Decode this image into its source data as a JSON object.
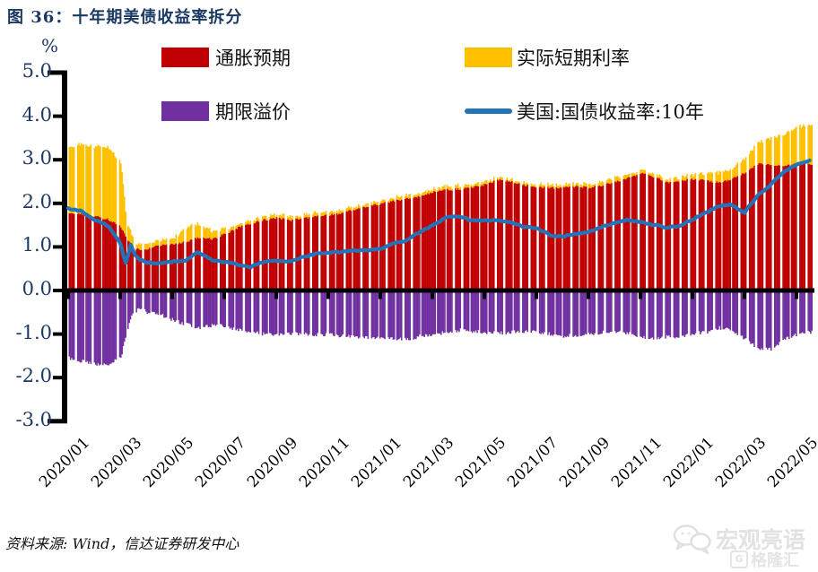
{
  "page": {
    "title": "图  36：十年期美债收益率拆分",
    "unit_label": "%",
    "source_note": "资料来源: Wind，信达证券研发中心"
  },
  "watermark": {
    "brand": "宏观亮语",
    "logo_letter": "G",
    "logo_text": "格隆汇",
    "color": "#e2e2e2"
  },
  "legend": {
    "items": [
      {
        "label": "通胀预期",
        "color": "#C00000",
        "type": "bar"
      },
      {
        "label": "实际短期利率",
        "color": "#FFC000",
        "type": "bar"
      },
      {
        "label": "期限溢价",
        "color": "#7030A0",
        "type": "bar"
      },
      {
        "label": "美国:国债收益率:10年",
        "color": "#2273B8",
        "type": "line"
      }
    ]
  },
  "chart_data": {
    "type": "bar",
    "subtype": "stacked-daily-bars-with-line-overlay",
    "title": "十年期美债收益率拆分",
    "ylabel": "%",
    "ylim": [
      -3.0,
      5.0
    ],
    "grid": false,
    "legend_position": "top",
    "y_ticks": [
      5,
      4,
      3,
      2,
      1,
      0,
      -1,
      -2,
      -3
    ],
    "y_tick_labels": [
      "5.0",
      "4.0",
      "3.0",
      "2.0",
      "1.0",
      "0.0",
      "-1.0",
      "-2.0",
      "-3.0"
    ],
    "x_tick_labels": [
      "2020/01",
      "2020/03",
      "2020/05",
      "2020/07",
      "2020/09",
      "2020/11",
      "2021/01",
      "2021/03",
      "2021/05",
      "2021/07",
      "2021/09",
      "2021/11",
      "2022/01",
      "2022/03",
      "2022/05"
    ],
    "x_months_since_2020_01": [
      0,
      0.5,
      1,
      1.5,
      2,
      2.2,
      2.4,
      2.6,
      2.8,
      3,
      3.5,
      4,
      4.5,
      5,
      5.5,
      6,
      6.5,
      7,
      7.5,
      8,
      8.5,
      9,
      9.5,
      10,
      10.5,
      11,
      11.5,
      12,
      12.5,
      13,
      13.5,
      14,
      14.5,
      15,
      15.5,
      16,
      16.5,
      17,
      17.5,
      18,
      18.5,
      19,
      19.5,
      20,
      20.5,
      21,
      21.5,
      22,
      22.5,
      23,
      23.5,
      24,
      24.5,
      25,
      25.5,
      26,
      26.5,
      27,
      27.5,
      28,
      28.5
    ],
    "series": [
      {
        "name": "通胀预期",
        "role": "stack-positive-bottom",
        "color": "#C00000",
        "values": [
          1.77,
          1.75,
          1.7,
          1.63,
          1.45,
          1.2,
          1.02,
          0.95,
          0.92,
          0.96,
          1.04,
          1.06,
          1.12,
          1.22,
          1.18,
          1.3,
          1.44,
          1.54,
          1.62,
          1.66,
          1.61,
          1.65,
          1.7,
          1.73,
          1.78,
          1.86,
          1.93,
          1.99,
          2.06,
          2.12,
          2.16,
          2.26,
          2.31,
          2.33,
          2.36,
          2.43,
          2.54,
          2.49,
          2.42,
          2.38,
          2.36,
          2.36,
          2.39,
          2.36,
          2.41,
          2.49,
          2.59,
          2.69,
          2.61,
          2.48,
          2.51,
          2.56,
          2.52,
          2.48,
          2.56,
          2.71,
          2.91,
          2.88,
          2.86,
          2.91,
          2.89
        ]
      },
      {
        "name": "实际短期利率",
        "role": "stack-positive-top",
        "color": "#FFC000",
        "values": [
          1.53,
          1.6,
          1.6,
          1.65,
          1.45,
          0.4,
          0.28,
          0.12,
          0.13,
          0.14,
          0.1,
          0.14,
          0.33,
          0.33,
          0.17,
          0.12,
          0.08,
          0.07,
          0.08,
          0.09,
          0.09,
          0.08,
          0.08,
          0.08,
          0.08,
          0.07,
          0.06,
          0.06,
          0.07,
          0.07,
          0.07,
          0.06,
          0.07,
          0.08,
          0.07,
          0.07,
          0.05,
          0.06,
          0.06,
          0.06,
          0.07,
          0.07,
          0.07,
          0.07,
          0.09,
          0.1,
          0.09,
          0.07,
          0.06,
          0.08,
          0.08,
          0.09,
          0.16,
          0.22,
          0.24,
          0.35,
          0.49,
          0.62,
          0.74,
          0.85,
          0.92
        ]
      },
      {
        "name": "期限溢价",
        "role": "stack-negative",
        "color": "#7030A0",
        "values": [
          -1.55,
          -1.62,
          -1.68,
          -1.72,
          -1.5,
          -1.0,
          -0.6,
          -0.45,
          -0.42,
          -0.5,
          -0.55,
          -0.68,
          -0.78,
          -0.85,
          -0.8,
          -0.82,
          -0.9,
          -0.96,
          -1.0,
          -1.02,
          -0.99,
          -1.0,
          -1.02,
          -1.0,
          -1.04,
          -1.06,
          -1.08,
          -1.1,
          -1.1,
          -1.12,
          -1.05,
          -1.0,
          -0.96,
          -0.91,
          -0.93,
          -0.96,
          -0.98,
          -0.95,
          -0.93,
          -0.95,
          -1.0,
          -1.05,
          -1.02,
          -1.0,
          -0.96,
          -0.95,
          -0.99,
          -1.06,
          -1.09,
          -1.06,
          -1.05,
          -1.0,
          -0.95,
          -0.86,
          -0.9,
          -1.12,
          -1.32,
          -1.35,
          -1.12,
          -1.0,
          -0.96
        ]
      },
      {
        "name": "美国:国债收益率:10年",
        "role": "line",
        "color": "#2273B8",
        "values": [
          1.88,
          1.82,
          1.62,
          1.5,
          1.12,
          0.6,
          1.05,
          0.78,
          0.7,
          0.64,
          0.62,
          0.66,
          0.69,
          0.88,
          0.7,
          0.66,
          0.6,
          0.54,
          0.66,
          0.7,
          0.67,
          0.76,
          0.84,
          0.86,
          0.88,
          0.92,
          0.93,
          0.95,
          1.08,
          1.14,
          1.34,
          1.48,
          1.66,
          1.72,
          1.6,
          1.62,
          1.6,
          1.56,
          1.46,
          1.44,
          1.28,
          1.24,
          1.3,
          1.33,
          1.46,
          1.54,
          1.63,
          1.57,
          1.51,
          1.44,
          1.49,
          1.63,
          1.78,
          1.93,
          1.98,
          1.78,
          2.18,
          2.42,
          2.72,
          2.88,
          2.98
        ]
      }
    ],
    "axis_color": "#000000"
  }
}
